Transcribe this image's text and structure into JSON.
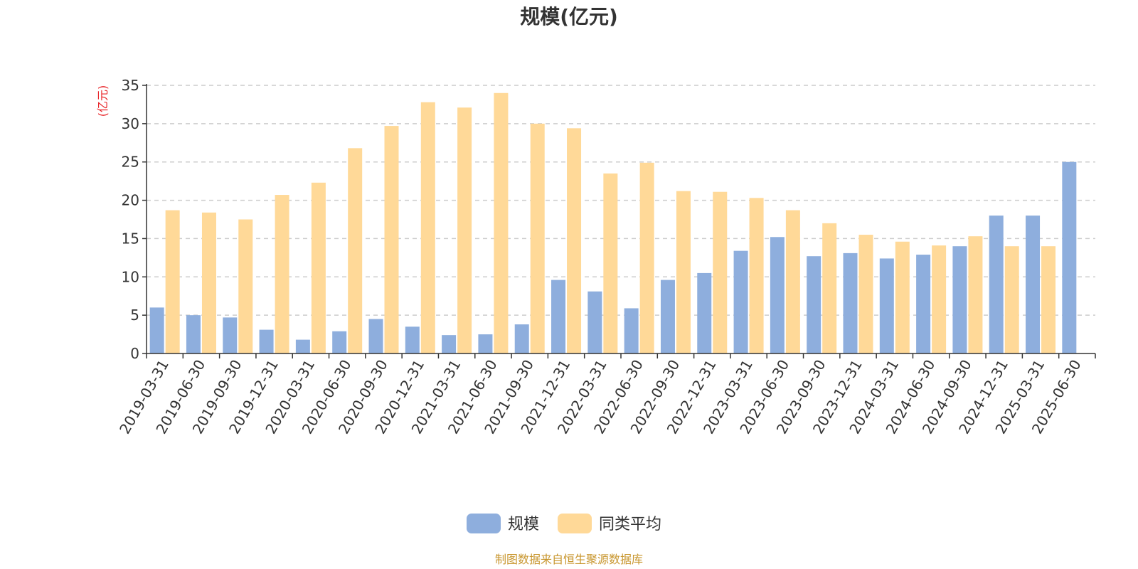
{
  "chart_data": {
    "type": "bar",
    "title": "规模(亿元)",
    "y_unit_label": "(亿元)",
    "xlabel": "",
    "ylabel": "",
    "ylim": [
      0,
      35
    ],
    "y_ticks": [
      0,
      5,
      10,
      15,
      20,
      25,
      30,
      35
    ],
    "grid": true,
    "legend_position": "bottom-center",
    "categories": [
      "2019-03-31",
      "2019-06-30",
      "2019-09-30",
      "2019-12-31",
      "2020-03-31",
      "2020-06-30",
      "2020-09-30",
      "2020-12-31",
      "2021-03-31",
      "2021-06-30",
      "2021-09-30",
      "2021-12-31",
      "2022-03-31",
      "2022-06-30",
      "2022-09-30",
      "2022-12-31",
      "2023-03-31",
      "2023-06-30",
      "2023-09-30",
      "2023-12-31",
      "2024-03-31",
      "2024-06-30",
      "2024-09-30",
      "2024-12-31",
      "2025-03-31",
      "2025-06-30"
    ],
    "series": [
      {
        "name": "规模",
        "color": "#8eaedd",
        "values": [
          6.0,
          5.0,
          4.7,
          3.1,
          1.8,
          2.9,
          4.5,
          3.5,
          2.4,
          2.5,
          3.8,
          9.6,
          8.1,
          5.9,
          9.6,
          10.5,
          13.4,
          15.2,
          12.7,
          13.1,
          12.4,
          12.9,
          14.0,
          18.0,
          18.0,
          25.0
        ]
      },
      {
        "name": "同类平均",
        "color": "#ffd998",
        "values": [
          18.7,
          18.4,
          17.5,
          20.7,
          22.3,
          26.8,
          29.7,
          32.8,
          32.1,
          34.0,
          30.0,
          29.4,
          23.5,
          24.9,
          21.2,
          21.1,
          20.3,
          18.7,
          17.0,
          15.5,
          14.6,
          14.1,
          15.3,
          14.0,
          14.0,
          null
        ]
      }
    ],
    "source_note": "制图数据来自恒生聚源数据库",
    "colors": {
      "unit_label": "#e8262a",
      "source_note": "#c8962e",
      "axis": "#333333",
      "grid": "#cccccc"
    }
  }
}
